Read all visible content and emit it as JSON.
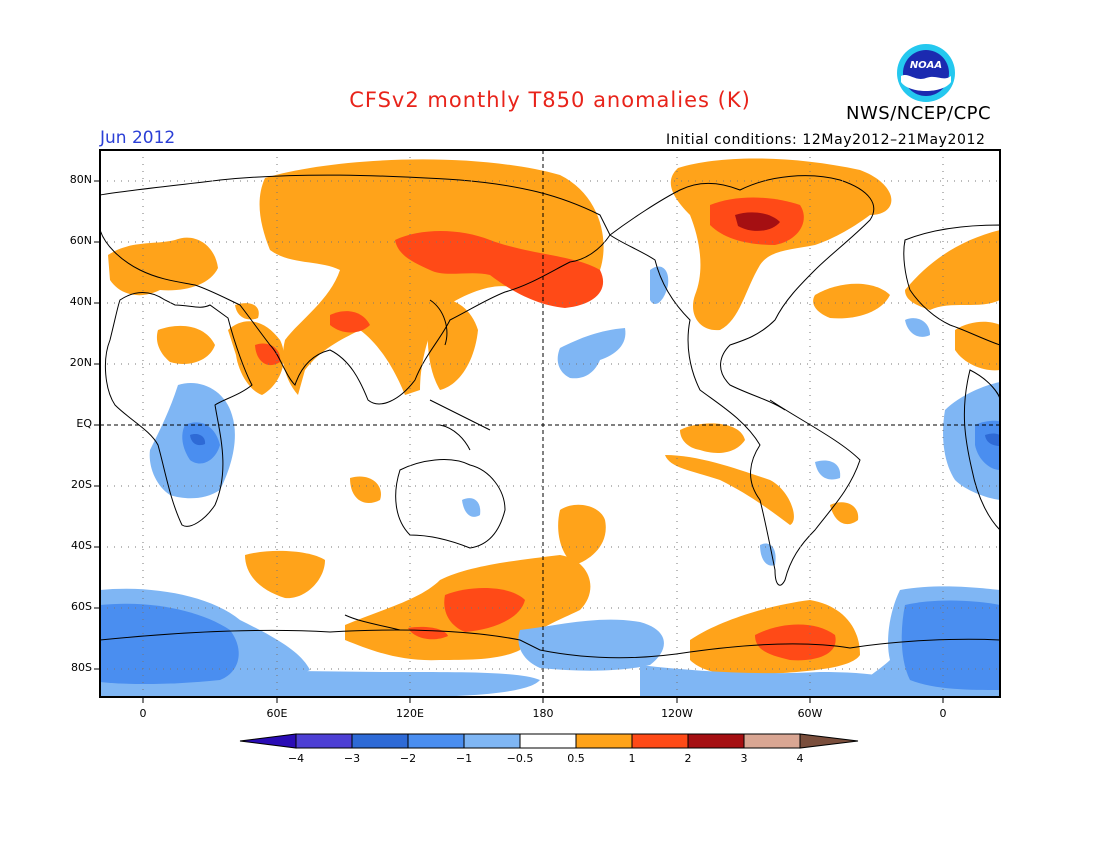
{
  "title": "CFSv2 monthly T850 anomalies (K)",
  "agency": "NWS/NCEP/CPC",
  "logo_text": "NOAA",
  "valid_month": "Jun 2012",
  "initial_conditions": "Initial conditions: 12May2012–21May2012",
  "lat_labels": [
    "80N",
    "60N",
    "40N",
    "20N",
    "EQ",
    "20S",
    "40S",
    "60S",
    "80S"
  ],
  "lon_labels": [
    "0",
    "60E",
    "120E",
    "180",
    "120W",
    "60W",
    "0"
  ],
  "colorbar": {
    "labels": [
      "−4",
      "−3",
      "−2",
      "−1",
      "−0.5",
      "0.5",
      "1",
      "2",
      "3",
      "4"
    ],
    "colors": [
      "#2a0cb5",
      "#4d3fd4",
      "#2e6ad6",
      "#4a8ef0",
      "#7fb6f4",
      "#ffffff",
      "#ffa31a",
      "#ff4a17",
      "#a50f12",
      "#d9a693",
      "#7a4e3c"
    ]
  }
}
